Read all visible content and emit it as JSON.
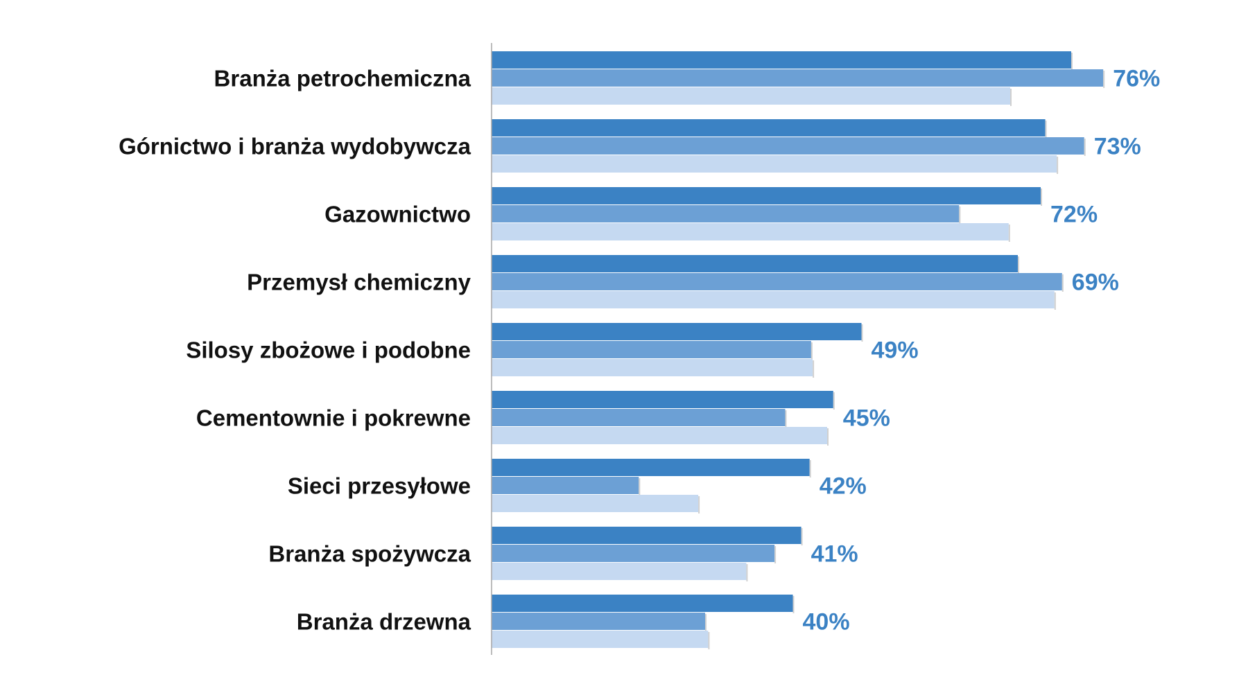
{
  "chart_data": {
    "type": "bar",
    "orientation": "horizontal",
    "categories": [
      "Branża petrochemiczna",
      "Górnictwo i branża wydobywcza",
      "Gazownictwo",
      "Przemysł chemiczny",
      "Silosy zbożowe i podobne",
      "Cementownie i pokrewne",
      "Sieci przesyłowe",
      "Branża spożywcza",
      "Branża drzewna"
    ],
    "series": [
      {
        "color": "#3b82c4",
        "values": [
          76,
          72.6,
          72,
          69,
          48.5,
          44.8,
          41.7,
          40.6,
          39.5
        ]
      },
      {
        "color": "#6ca0d5",
        "values": [
          80.2,
          77.7,
          61.3,
          74.8,
          41.9,
          38.5,
          19.3,
          37.1,
          28
        ]
      },
      {
        "color": "#c5d9f1",
        "values": [
          68,
          74.1,
          67.8,
          73.8,
          42.1,
          44,
          27.1,
          33.4,
          28.4
        ]
      }
    ],
    "data_labels": [
      "76%",
      "73%",
      "72%",
      "69%",
      "49%",
      "45%",
      "42%",
      "41%",
      "40%"
    ],
    "data_label_color": "#3b82c4",
    "xlim": [
      0,
      100
    ],
    "grid": false,
    "legend": "none",
    "title": "",
    "xlabel": "",
    "ylabel": ""
  }
}
